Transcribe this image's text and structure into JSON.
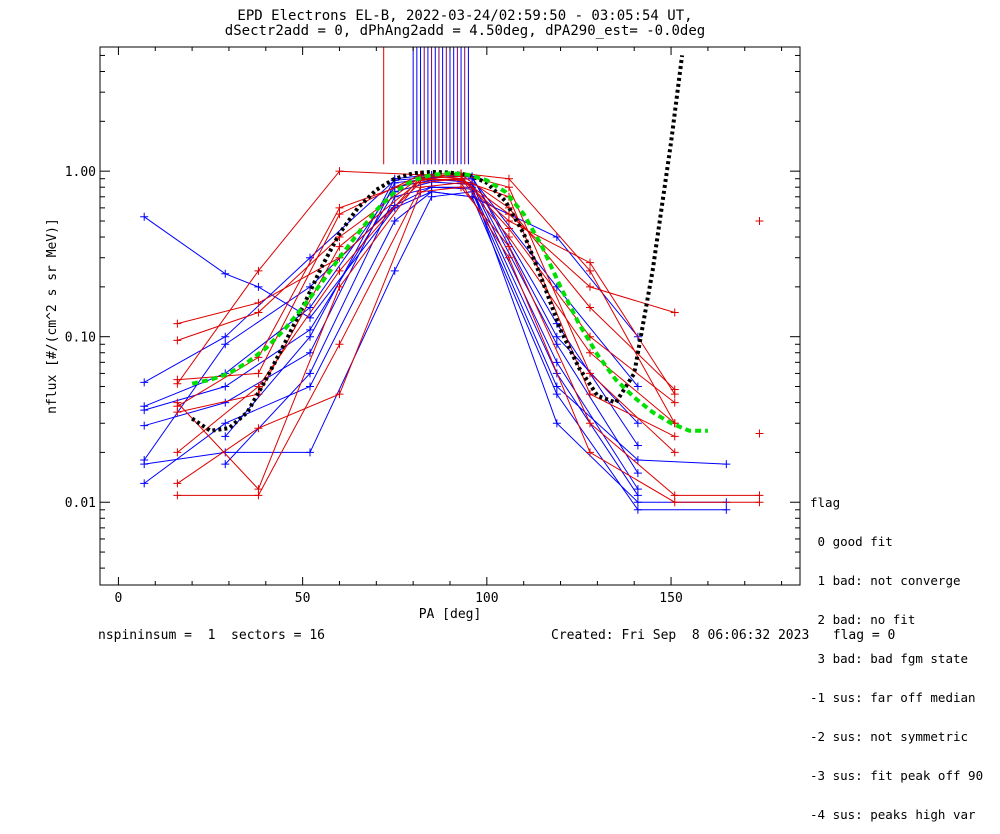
{
  "title": {
    "line1": "EPD Electrons EL-B, 2022-03-24/02:59:50 - 03:05:54 UT,",
    "line2": "dSectr2add = 0, dPhAng2add = 4.50deg, dPA290_est=  -0.0deg"
  },
  "legend": {
    "title": "flag",
    "items": [
      " 0 good fit",
      " 1 bad: not converge",
      " 2 bad: no fit",
      " 3 bad: bad fgm state",
      "-1 sus: far off median",
      "-2 sus: not symmetric",
      "-3 sus: fit peak off 90",
      "-4 sus: peaks high var"
    ]
  },
  "footer": {
    "left": "nspininsum =  1  sectors = 16",
    "right": "Created: Fri Sep  8 06:06:32 2023   flag = 0"
  },
  "colors": {
    "blue": "#0000ff",
    "red": "#dd0000",
    "purple": "#800060",
    "black": "#000000",
    "green": "#00e000"
  },
  "chart_data": {
    "type": "line",
    "xlabel": "PA [deg]",
    "ylabel": "nflux [#/(cm^2 s sr MeV)]",
    "xlim": [
      -5,
      185
    ],
    "ylim_log10": [
      -2.5,
      0.75
    ],
    "yscale": "log",
    "xticks": [
      0,
      50,
      100,
      150
    ],
    "yticks": [
      {
        "value": 0.01,
        "label": "0.01"
      },
      {
        "value": 0.1,
        "label": "0.10"
      },
      {
        "value": 1.0,
        "label": "1.00"
      }
    ],
    "vertical_markers": {
      "red": [
        72
      ],
      "blue": [
        80,
        81,
        82,
        84,
        86,
        88,
        90,
        91,
        93,
        95
      ],
      "purple": [
        83,
        85,
        87,
        89,
        92,
        94
      ],
      "ymin": 1.1
    },
    "series": [
      {
        "color": "blue",
        "points": [
          [
            7,
            0.018
          ],
          [
            29,
            0.09
          ],
          [
            52,
            0.2
          ],
          [
            75,
            0.62
          ],
          [
            85,
            0.8
          ],
          [
            96,
            0.78
          ],
          [
            119,
            0.06
          ],
          [
            141,
            0.011
          ]
        ]
      },
      {
        "color": "blue",
        "points": [
          [
            7,
            0.036
          ],
          [
            29,
            0.05
          ],
          [
            52,
            0.11
          ],
          [
            75,
            0.75
          ],
          [
            85,
            0.86
          ],
          [
            96,
            0.83
          ],
          [
            119,
            0.07
          ],
          [
            141,
            0.012
          ]
        ]
      },
      {
        "color": "blue",
        "points": [
          [
            7,
            0.029
          ],
          [
            29,
            0.04
          ],
          [
            52,
            0.08
          ],
          [
            75,
            0.85
          ],
          [
            85,
            0.9
          ],
          [
            96,
            0.85
          ],
          [
            119,
            0.09
          ],
          [
            141,
            0.015
          ]
        ]
      },
      {
        "color": "blue",
        "points": [
          [
            7,
            0.53
          ],
          [
            29,
            0.24
          ],
          [
            38,
            0.2
          ],
          [
            52,
            0.13
          ],
          [
            75,
            0.6
          ],
          [
            85,
            0.75
          ],
          [
            96,
            0.7
          ],
          [
            119,
            0.4
          ],
          [
            141,
            0.1
          ]
        ]
      },
      {
        "color": "blue",
        "points": [
          [
            7,
            0.013
          ],
          [
            29,
            0.03
          ],
          [
            52,
            0.05
          ],
          [
            75,
            0.5
          ],
          [
            85,
            0.75
          ],
          [
            96,
            0.7
          ],
          [
            119,
            0.045
          ],
          [
            141,
            0.009
          ],
          [
            165,
            0.009
          ]
        ]
      },
      {
        "color": "blue",
        "points": [
          [
            7,
            0.017
          ],
          [
            29,
            0.02
          ],
          [
            52,
            0.02
          ],
          [
            75,
            0.25
          ],
          [
            85,
            0.7
          ],
          [
            96,
            0.75
          ],
          [
            119,
            0.05
          ],
          [
            141,
            0.018
          ],
          [
            165,
            0.017
          ]
        ]
      },
      {
        "color": "blue",
        "points": [
          [
            7,
            0.053
          ],
          [
            29,
            0.1
          ],
          [
            52,
            0.3
          ],
          [
            75,
            0.88
          ],
          [
            85,
            0.92
          ],
          [
            96,
            0.93
          ],
          [
            119,
            0.1
          ],
          [
            141,
            0.03
          ]
        ]
      },
      {
        "color": "blue",
        "points": [
          [
            7,
            0.038
          ],
          [
            29,
            0.06
          ],
          [
            52,
            0.15
          ],
          [
            75,
            0.8
          ],
          [
            85,
            0.88
          ],
          [
            96,
            0.9
          ],
          [
            119,
            0.2
          ],
          [
            141,
            0.05
          ]
        ]
      },
      {
        "color": "blue",
        "points": [
          [
            29,
            0.017
          ],
          [
            52,
            0.06
          ],
          [
            75,
            0.7
          ],
          [
            85,
            0.8
          ],
          [
            96,
            0.8
          ],
          [
            119,
            0.03
          ],
          [
            141,
            0.01
          ],
          [
            165,
            0.01
          ]
        ]
      },
      {
        "color": "blue",
        "points": [
          [
            29,
            0.025
          ],
          [
            52,
            0.1
          ],
          [
            75,
            0.9
          ],
          [
            85,
            0.95
          ],
          [
            96,
            0.92
          ],
          [
            119,
            0.12
          ],
          [
            141,
            0.022
          ]
        ]
      },
      {
        "color": "red",
        "points": [
          [
            16,
            0.12
          ],
          [
            38,
            0.16
          ],
          [
            60,
            0.3
          ],
          [
            82,
            0.85
          ],
          [
            93,
            0.9
          ],
          [
            106,
            0.55
          ],
          [
            128,
            0.2
          ],
          [
            151,
            0.14
          ]
        ]
      },
      {
        "color": "red",
        "points": [
          [
            16,
            0.095
          ],
          [
            38,
            0.14
          ],
          [
            60,
            0.4
          ],
          [
            82,
            0.92
          ],
          [
            93,
            0.95
          ],
          [
            106,
            0.6
          ],
          [
            128,
            0.15
          ],
          [
            151,
            0.048
          ]
        ]
      },
      {
        "color": "red",
        "points": [
          [
            16,
            0.052
          ],
          [
            38,
            0.25
          ],
          [
            60,
            1.0
          ],
          [
            82,
            0.95
          ],
          [
            93,
            0.9
          ],
          [
            106,
            0.5
          ],
          [
            128,
            0.28
          ],
          [
            151,
            0.045
          ]
        ]
      },
      {
        "color": "red",
        "points": [
          [
            16,
            0.038
          ],
          [
            38,
            0.075
          ],
          [
            60,
            0.6
          ],
          [
            82,
            0.9
          ],
          [
            93,
            0.93
          ],
          [
            106,
            0.45
          ],
          [
            128,
            0.1
          ],
          [
            151,
            0.04
          ]
        ]
      },
      {
        "color": "red",
        "points": [
          [
            16,
            0.035
          ],
          [
            38,
            0.045
          ],
          [
            60,
            0.35
          ],
          [
            82,
            0.88
          ],
          [
            93,
            0.9
          ],
          [
            106,
            0.4
          ],
          [
            128,
            0.08
          ],
          [
            151,
            0.03
          ]
        ]
      },
      {
        "color": "red",
        "points": [
          [
            16,
            0.011
          ],
          [
            38,
            0.011
          ],
          [
            60,
            0.09
          ],
          [
            82,
            0.8
          ],
          [
            93,
            0.85
          ],
          [
            106,
            0.3
          ],
          [
            128,
            0.02
          ],
          [
            151,
            0.01
          ],
          [
            174,
            0.01
          ]
        ]
      },
      {
        "color": "red",
        "points": [
          [
            16,
            0.013
          ],
          [
            38,
            0.028
          ],
          [
            60,
            0.045
          ],
          [
            82,
            0.75
          ],
          [
            93,
            0.8
          ],
          [
            106,
            0.35
          ],
          [
            128,
            0.03
          ],
          [
            151,
            0.011
          ],
          [
            174,
            0.011
          ]
        ]
      },
      {
        "color": "red",
        "points": [
          [
            16,
            0.02
          ],
          [
            38,
            0.05
          ],
          [
            60,
            0.25
          ],
          [
            82,
            0.92
          ],
          [
            93,
            0.96
          ],
          [
            106,
            0.8
          ],
          [
            128,
            0.06
          ],
          [
            151,
            0.02
          ]
        ]
      },
      {
        "color": "red",
        "points": [
          [
            16,
            0.055
          ],
          [
            38,
            0.06
          ],
          [
            60,
            0.55
          ],
          [
            82,
            0.95
          ],
          [
            93,
            0.97
          ],
          [
            106,
            0.9
          ],
          [
            128,
            0.25
          ],
          [
            151,
            0.03
          ]
        ]
      },
      {
        "color": "red",
        "points": [
          [
            16,
            0.04
          ],
          [
            38,
            0.012
          ],
          [
            60,
            0.2
          ],
          [
            82,
            0.9
          ],
          [
            93,
            0.88
          ],
          [
            106,
            0.7
          ],
          [
            128,
            0.045
          ],
          [
            151,
            0.025
          ]
        ]
      }
    ],
    "isolated_points": [
      {
        "color": "red",
        "x": 174,
        "y": 0.5
      },
      {
        "color": "red",
        "x": 174,
        "y": 0.026
      }
    ],
    "fit_curves": [
      {
        "color": "black",
        "style": "dotted",
        "x": [
          20,
          25,
          30,
          35,
          40,
          45,
          50,
          55,
          60,
          65,
          70,
          75,
          80,
          85,
          90,
          95,
          100,
          105,
          110,
          115,
          120,
          125,
          130,
          135,
          140,
          145,
          150,
          153
        ],
        "y": [
          0.032,
          0.027,
          0.028,
          0.035,
          0.055,
          0.09,
          0.15,
          0.26,
          0.42,
          0.6,
          0.77,
          0.9,
          0.97,
          0.99,
          0.98,
          0.95,
          0.85,
          0.66,
          0.42,
          0.22,
          0.11,
          0.065,
          0.044,
          0.04,
          0.06,
          0.25,
          1.5,
          5.0
        ]
      },
      {
        "color": "green",
        "style": "dashed",
        "x": [
          20,
          25,
          30,
          35,
          40,
          45,
          50,
          55,
          60,
          65,
          70,
          75,
          80,
          85,
          90,
          95,
          100,
          105,
          110,
          115,
          120,
          125,
          130,
          135,
          140,
          145,
          150,
          155,
          160
        ],
        "y": [
          0.052,
          0.055,
          0.06,
          0.07,
          0.085,
          0.11,
          0.15,
          0.21,
          0.3,
          0.42,
          0.58,
          0.75,
          0.88,
          0.95,
          0.97,
          0.95,
          0.88,
          0.75,
          0.55,
          0.35,
          0.2,
          0.12,
          0.078,
          0.055,
          0.043,
          0.035,
          0.03,
          0.027,
          0.027
        ]
      }
    ]
  }
}
